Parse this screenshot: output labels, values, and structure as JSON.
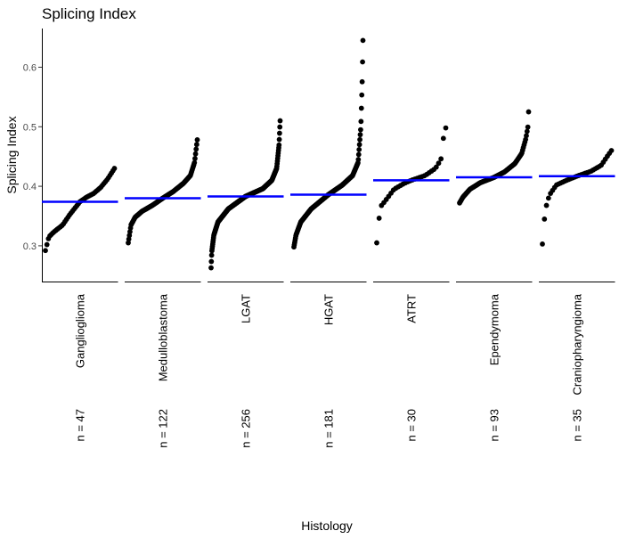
{
  "chart_data": {
    "type": "scatter",
    "title": "Splicing Index",
    "xlabel": "Histology",
    "ylabel": "Splicing Index",
    "ylim": [
      0.24,
      0.665
    ],
    "yticks": [
      0.3,
      0.4,
      0.5,
      0.6
    ],
    "ytick_labels": [
      "0.3",
      "0.4",
      "0.5",
      "0.6"
    ],
    "grid": false,
    "median_line_color": "#0000ff",
    "point_color": "#000000",
    "groups": [
      {
        "name": "Ganglioglioma",
        "count_label": "n = 47",
        "n": 47,
        "median": 0.374,
        "min": 0.292,
        "max": 0.43,
        "profile": [
          [
            0,
            0.292
          ],
          [
            0.05,
            0.315
          ],
          [
            0.12,
            0.323
          ],
          [
            0.25,
            0.335
          ],
          [
            0.35,
            0.352
          ],
          [
            0.5,
            0.374
          ],
          [
            0.6,
            0.382
          ],
          [
            0.7,
            0.388
          ],
          [
            0.8,
            0.398
          ],
          [
            0.9,
            0.412
          ],
          [
            1,
            0.43
          ]
        ]
      },
      {
        "name": "Medulloblastoma",
        "count_label": "n = 122",
        "n": 122,
        "median": 0.38,
        "min": 0.305,
        "max": 0.478,
        "profile": [
          [
            0,
            0.305
          ],
          [
            0.04,
            0.335
          ],
          [
            0.1,
            0.348
          ],
          [
            0.2,
            0.358
          ],
          [
            0.35,
            0.368
          ],
          [
            0.5,
            0.38
          ],
          [
            0.65,
            0.391
          ],
          [
            0.8,
            0.405
          ],
          [
            0.9,
            0.418
          ],
          [
            0.96,
            0.44
          ],
          [
            1,
            0.478
          ]
        ]
      },
      {
        "name": "LGAT",
        "count_label": "n = 256",
        "n": 256,
        "median": 0.383,
        "min": 0.263,
        "max": 0.51,
        "profile": [
          [
            0,
            0.263
          ],
          [
            0.01,
            0.29
          ],
          [
            0.04,
            0.318
          ],
          [
            0.1,
            0.34
          ],
          [
            0.25,
            0.362
          ],
          [
            0.5,
            0.383
          ],
          [
            0.75,
            0.396
          ],
          [
            0.88,
            0.41
          ],
          [
            0.95,
            0.43
          ],
          [
            0.985,
            0.47
          ],
          [
            1,
            0.51
          ]
        ]
      },
      {
        "name": "HGAT",
        "count_label": "n = 181",
        "n": 181,
        "median": 0.386,
        "min": 0.298,
        "max": 0.645,
        "profile": [
          [
            0,
            0.298
          ],
          [
            0.03,
            0.318
          ],
          [
            0.1,
            0.34
          ],
          [
            0.25,
            0.362
          ],
          [
            0.5,
            0.386
          ],
          [
            0.7,
            0.402
          ],
          [
            0.85,
            0.418
          ],
          [
            0.93,
            0.44
          ],
          [
            0.97,
            0.5
          ],
          [
            0.99,
            0.58
          ],
          [
            1,
            0.645
          ]
        ]
      },
      {
        "name": "ATRT",
        "count_label": "n = 30",
        "n": 30,
        "median": 0.41,
        "min": 0.305,
        "max": 0.498,
        "profile": [
          [
            0,
            0.305
          ],
          [
            0.05,
            0.365
          ],
          [
            0.12,
            0.375
          ],
          [
            0.25,
            0.395
          ],
          [
            0.4,
            0.405
          ],
          [
            0.5,
            0.41
          ],
          [
            0.7,
            0.418
          ],
          [
            0.85,
            0.43
          ],
          [
            0.93,
            0.445
          ],
          [
            0.97,
            0.485
          ],
          [
            1,
            0.498
          ]
        ]
      },
      {
        "name": "Ependymoma",
        "count_label": "n = 93",
        "n": 93,
        "median": 0.415,
        "min": 0.372,
        "max": 0.525,
        "profile": [
          [
            0,
            0.372
          ],
          [
            0.05,
            0.382
          ],
          [
            0.15,
            0.395
          ],
          [
            0.3,
            0.406
          ],
          [
            0.5,
            0.415
          ],
          [
            0.65,
            0.424
          ],
          [
            0.8,
            0.438
          ],
          [
            0.9,
            0.455
          ],
          [
            0.96,
            0.48
          ],
          [
            0.99,
            0.5
          ],
          [
            1,
            0.525
          ]
        ]
      },
      {
        "name": "Craniopharyngioma",
        "count_label": "n = 35",
        "n": 35,
        "median": 0.417,
        "min": 0.303,
        "max": 0.46,
        "profile": [
          [
            0,
            0.303
          ],
          [
            0.04,
            0.36
          ],
          [
            0.1,
            0.385
          ],
          [
            0.2,
            0.402
          ],
          [
            0.35,
            0.41
          ],
          [
            0.5,
            0.417
          ],
          [
            0.7,
            0.425
          ],
          [
            0.85,
            0.435
          ],
          [
            0.95,
            0.452
          ],
          [
            1,
            0.46
          ]
        ]
      }
    ]
  }
}
